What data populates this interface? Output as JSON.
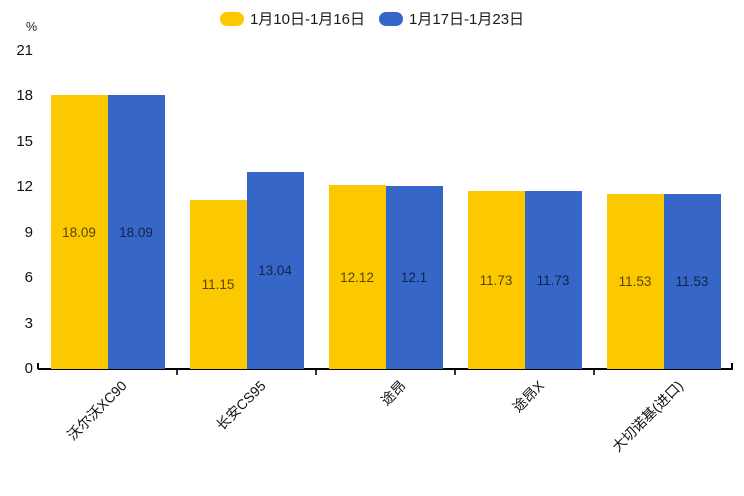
{
  "legend": {
    "items": [
      {
        "label": "1月10日-1月16日",
        "color": "#FCC800"
      },
      {
        "label": "1月17日-1月23日",
        "color": "#3667C8"
      }
    ]
  },
  "y_axis": {
    "unit": "%",
    "tick_labels": [
      "0",
      "3",
      "6",
      "9",
      "12",
      "15",
      "18",
      "21"
    ]
  },
  "chart_data": {
    "type": "bar",
    "title": "",
    "xlabel": "",
    "ylabel": "%",
    "ylim": [
      0,
      21
    ],
    "y_tick_step": 3,
    "grid": false,
    "legend_position": "top",
    "bar_label_position": "inside-center",
    "x_label_rotation_deg": 45,
    "categories": [
      "沃尔沃XC90",
      "长安CS95",
      "途昂",
      "途昂X",
      "大切诺基(进口)"
    ],
    "series": [
      {
        "name": "1月10日-1月16日",
        "color": "#FCC800",
        "values": [
          18.09,
          11.15,
          12.12,
          11.73,
          11.53
        ],
        "labels": [
          "18.09",
          "11.15",
          "12.12",
          "11.73",
          "11.53"
        ]
      },
      {
        "name": "1月17日-1月23日",
        "color": "#3667C8",
        "values": [
          18.09,
          13.04,
          12.1,
          11.73,
          11.53
        ],
        "labels": [
          "18.09",
          "13.04",
          "12.1",
          "11.73",
          "11.53"
        ]
      }
    ]
  }
}
